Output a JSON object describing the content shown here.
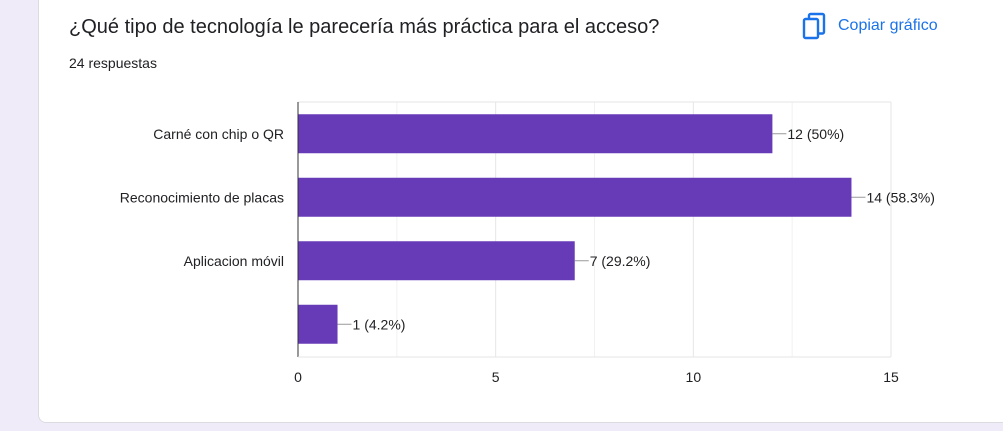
{
  "header": {
    "title": "¿Qué tipo de tecnología le parecería más práctica para el acceso?",
    "responses": "24 respuestas",
    "copy_label": "Copiar gráfico"
  },
  "colors": {
    "bar": "#673ab7",
    "link": "#1a73e8",
    "grid": "#e6e6e6",
    "axis": "#333333",
    "text": "#202124"
  },
  "chart_data": {
    "type": "bar",
    "orientation": "horizontal",
    "categories": [
      "Carné con chip o QR",
      "Reconocimiento de placas",
      "Aplicacion móvil",
      ""
    ],
    "values": [
      12,
      14,
      7,
      1
    ],
    "data_labels": [
      "12 (50%)",
      "14 (58.3%)",
      "7 (29.2%)",
      "1 (4.2%)"
    ],
    "xlim": [
      0,
      15
    ],
    "xticks": [
      0,
      5,
      10,
      15
    ],
    "grid": true
  }
}
